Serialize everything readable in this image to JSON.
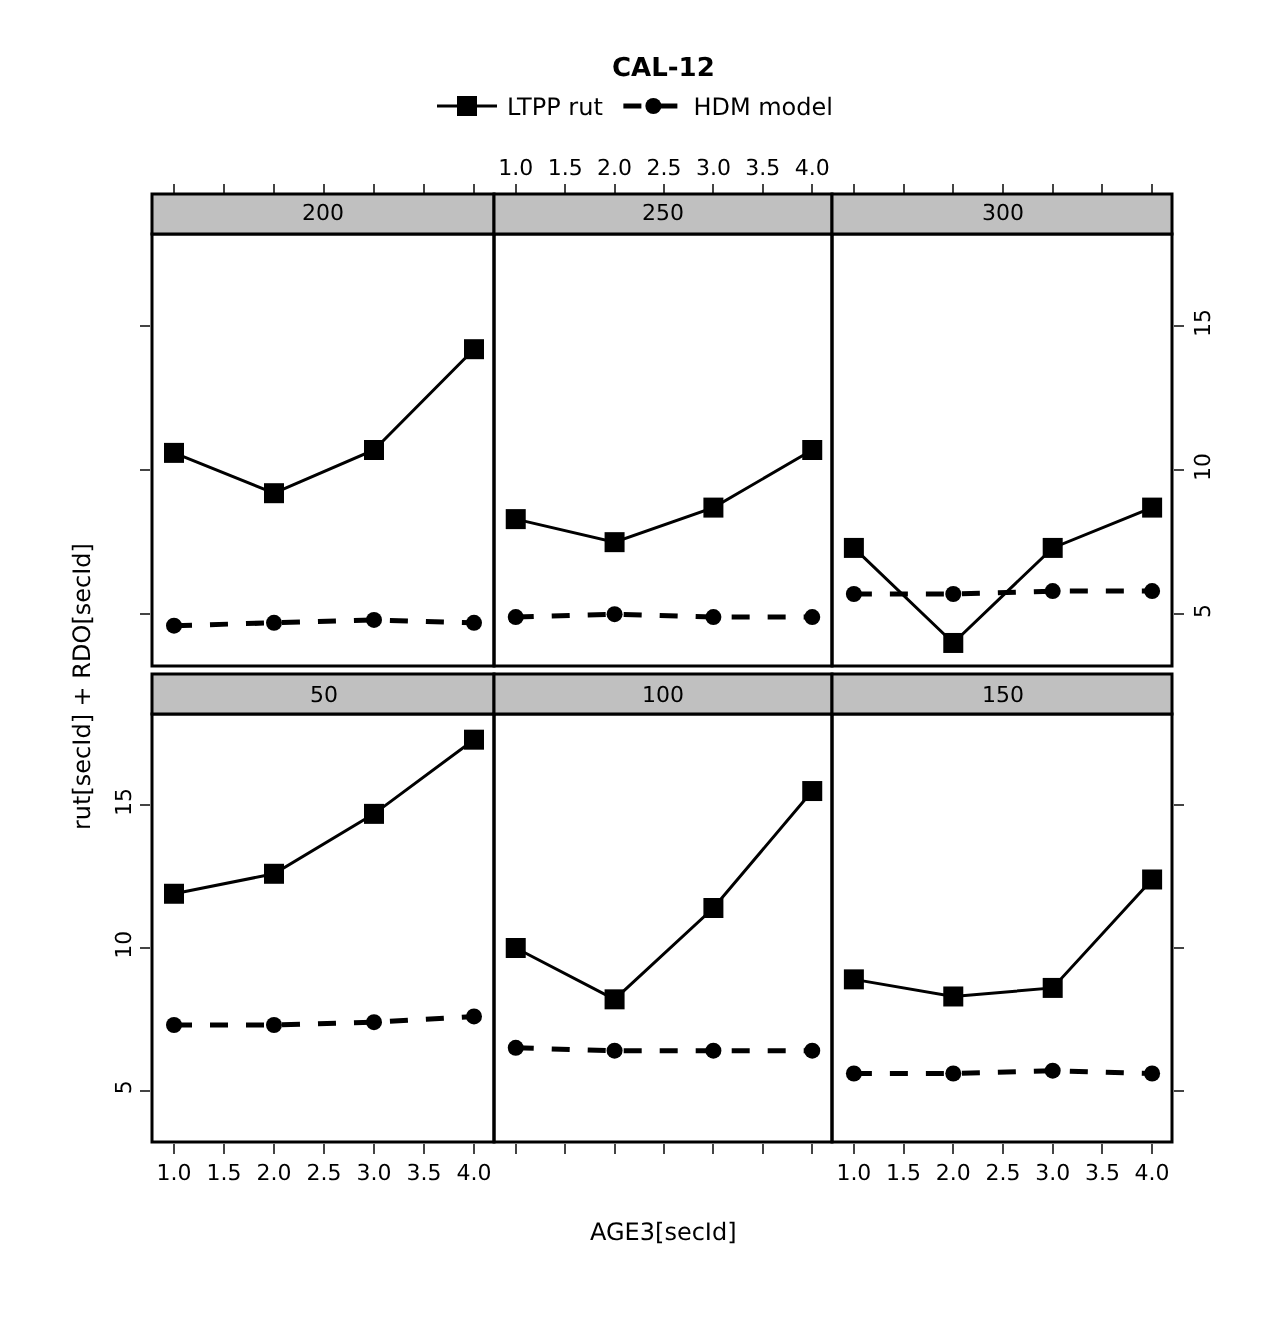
{
  "chart_data": [
    {
      "type": "line",
      "subtitle": "200",
      "xlabel": "AGE3[secId]",
      "ylabel": "rut[secId] + RDO[secId]",
      "x": [
        1,
        2,
        3,
        4
      ],
      "xlim": [
        0.78,
        4.2
      ],
      "ylim": [
        3.2,
        18.2
      ],
      "xticks": [
        {
          "value": 1,
          "label": null
        },
        {
          "value": 1.5,
          "label": null
        },
        {
          "value": 2,
          "label": null
        },
        {
          "value": 2.5,
          "label": null
        },
        {
          "value": 3,
          "label": null
        },
        {
          "value": 3.5,
          "label": null
        },
        {
          "value": 4,
          "label": null
        }
      ],
      "yticks": [
        {
          "value": 5,
          "label": null
        },
        {
          "value": 10,
          "label": null
        },
        {
          "value": 15,
          "label": null
        }
      ],
      "tick_labels": false,
      "series": [
        {
          "color": "#000000",
          "marker": "square",
          "line_style": "solid",
          "values": [
            10.6,
            9.2,
            10.7,
            14.2
          ]
        },
        {
          "color": "#000000",
          "marker": "circle",
          "line_style": "dashed",
          "values": [
            4.6,
            4.7,
            4.8,
            4.7
          ]
        }
      ]
    },
    {
      "type": "line",
      "title": "CAL-12",
      "subtitle": "250",
      "legend": "top",
      "x": [
        1,
        2,
        3,
        4
      ],
      "xlim": [
        0.78,
        4.2
      ],
      "ylim": [
        3.2,
        18.2
      ],
      "xticks": [
        {
          "value": 1,
          "label": "1.0"
        },
        {
          "value": 1.5,
          "label": "1.5"
        },
        {
          "value": 2,
          "label": "2.0"
        },
        {
          "value": 2.5,
          "label": "2.5"
        },
        {
          "value": 3,
          "label": "3.0"
        },
        {
          "value": 3.5,
          "label": "3.5"
        },
        {
          "value": 4,
          "label": "4.0"
        }
      ],
      "yticks": [
        {
          "value": 5,
          "label": null
        },
        {
          "value": 10,
          "label": null
        },
        {
          "value": 15,
          "label": null
        }
      ],
      "tick_labels": "x",
      "series": [
        {
          "name": "LTPP rut",
          "color": "#000000",
          "marker": "square",
          "line_style": "solid",
          "values": [
            8.3,
            7.5,
            8.7,
            10.7
          ]
        },
        {
          "name": "HDM model",
          "color": "#000000",
          "marker": "circle",
          "line_style": "dashed",
          "values": [
            4.9,
            5.0,
            4.9,
            4.9
          ]
        }
      ]
    },
    {
      "type": "line",
      "subtitle": "300",
      "x": [
        1,
        2,
        3,
        4
      ],
      "xlim": [
        0.78,
        4.2
      ],
      "ylim": [
        3.2,
        18.2
      ],
      "xticks": [
        {
          "value": 1,
          "label": null
        },
        {
          "value": 1.5,
          "label": null
        },
        {
          "value": 2,
          "label": null
        },
        {
          "value": 2.5,
          "label": null
        },
        {
          "value": 3,
          "label": null
        },
        {
          "value": 3.5,
          "label": null
        },
        {
          "value": 4,
          "label": null
        }
      ],
      "yticks": [
        5,
        10,
        15
      ],
      "tick_labels": "y",
      "series": [
        {
          "color": "#000000",
          "marker": "square",
          "line_style": "solid",
          "values": [
            7.3,
            4.0,
            7.3,
            8.7
          ]
        },
        {
          "color": "#000000",
          "marker": "circle",
          "line_style": "dashed",
          "values": [
            5.7,
            5.7,
            5.8,
            5.8
          ]
        }
      ]
    },
    {
      "type": "line",
      "subtitle": "50",
      "x": [
        1,
        2,
        3,
        4
      ],
      "xlim": [
        0.78,
        4.2
      ],
      "ylim": [
        3.2,
        18.2
      ],
      "xticks": [
        {
          "value": 1,
          "label": "1.0"
        },
        {
          "value": 1.5,
          "label": "1.5"
        },
        {
          "value": 2,
          "label": "2.0"
        },
        {
          "value": 2.5,
          "label": "2.5"
        },
        {
          "value": 3,
          "label": "3.0"
        },
        {
          "value": 3.5,
          "label": "3.5"
        },
        {
          "value": 4,
          "label": "4.0"
        }
      ],
      "yticks": [
        5,
        10,
        15
      ],
      "series": [
        {
          "color": "#000000",
          "marker": "square",
          "line_style": "solid",
          "values": [
            11.9,
            12.6,
            14.7,
            17.3
          ]
        },
        {
          "color": "#000000",
          "marker": "circle",
          "line_style": "dashed",
          "values": [
            7.3,
            7.3,
            7.4,
            7.6
          ]
        }
      ]
    },
    {
      "type": "line",
      "subtitle": "100",
      "x": [
        1,
        2,
        3,
        4
      ],
      "xlim": [
        0.78,
        4.2
      ],
      "ylim": [
        3.2,
        18.2
      ],
      "xticks": [
        {
          "value": 1,
          "label": null
        },
        {
          "value": 1.5,
          "label": null
        },
        {
          "value": 2,
          "label": null
        },
        {
          "value": 2.5,
          "label": null
        },
        {
          "value": 3,
          "label": null
        },
        {
          "value": 3.5,
          "label": null
        },
        {
          "value": 4,
          "label": null
        }
      ],
      "yticks": [
        {
          "value": 5,
          "label": null
        },
        {
          "value": 10,
          "label": null
        },
        {
          "value": 15,
          "label": null
        }
      ],
      "tick_labels": false,
      "series": [
        {
          "color": "#000000",
          "marker": "square",
          "line_style": "solid",
          "values": [
            10.0,
            8.2,
            11.4,
            15.5
          ]
        },
        {
          "color": "#000000",
          "marker": "circle",
          "line_style": "dashed",
          "values": [
            6.5,
            6.4,
            6.4,
            6.4
          ]
        }
      ]
    },
    {
      "type": "line",
      "subtitle": "150",
      "x": [
        1,
        2,
        3,
        4
      ],
      "xlim": [
        0.78,
        4.2
      ],
      "ylim": [
        3.2,
        18.2
      ],
      "xticks": [
        {
          "value": 1,
          "label": "1.0"
        },
        {
          "value": 1.5,
          "label": "1.5"
        },
        {
          "value": 2,
          "label": "2.0"
        },
        {
          "value": 2.5,
          "label": "2.5"
        },
        {
          "value": 3,
          "label": "3.0"
        },
        {
          "value": 3.5,
          "label": "3.5"
        },
        {
          "value": 4,
          "label": "4.0"
        }
      ],
      "yticks": [
        {
          "value": 5,
          "label": null
        },
        {
          "value": 10,
          "label": null
        },
        {
          "value": 15,
          "label": null
        }
      ],
      "tick_labels": "x",
      "series": [
        {
          "color": "#000000",
          "marker": "square",
          "line_style": "solid",
          "values": [
            8.9,
            8.3,
            8.6,
            12.4
          ]
        },
        {
          "color": "#000000",
          "marker": "circle",
          "line_style": "dashed",
          "values": [
            5.6,
            5.6,
            5.7,
            5.6
          ]
        }
      ]
    }
  ]
}
